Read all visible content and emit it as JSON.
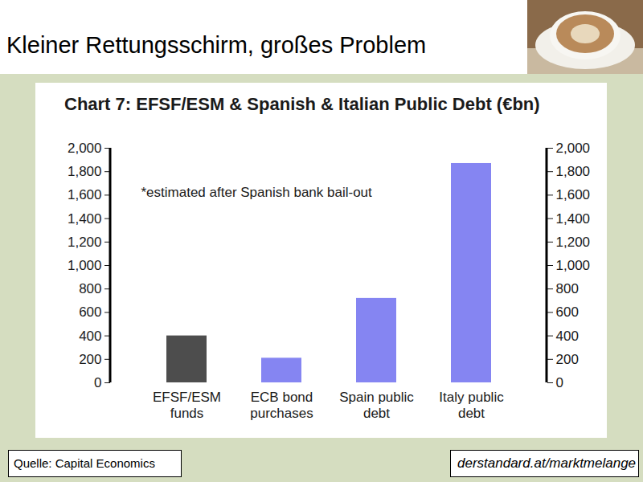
{
  "slide": {
    "heading": "Kleiner Rettungsschirm, großes Problem",
    "source": "Quelle: Capital Economics",
    "url": "derstandard.at/marktmelange"
  },
  "chart_data": {
    "type": "bar",
    "title": "Chart 7: EFSF/ESM & Spanish & Italian Public Debt (€bn)",
    "annotations": [
      "*estimated after Spanish bank bail-out"
    ],
    "categories": [
      "EFSF/ESM funds",
      "ECB bond purchases",
      "Spain public debt",
      "Italy public debt"
    ],
    "values": [
      400,
      210,
      720,
      1870
    ],
    "colors": [
      "#4d4d4d",
      "#8585f2",
      "#8585f2",
      "#8585f2"
    ],
    "ylim": [
      0,
      2000
    ],
    "yticks": [
      0,
      200,
      400,
      600,
      800,
      1000,
      1200,
      1400,
      1600,
      1800,
      2000
    ],
    "grid": false,
    "data_labels": false
  }
}
